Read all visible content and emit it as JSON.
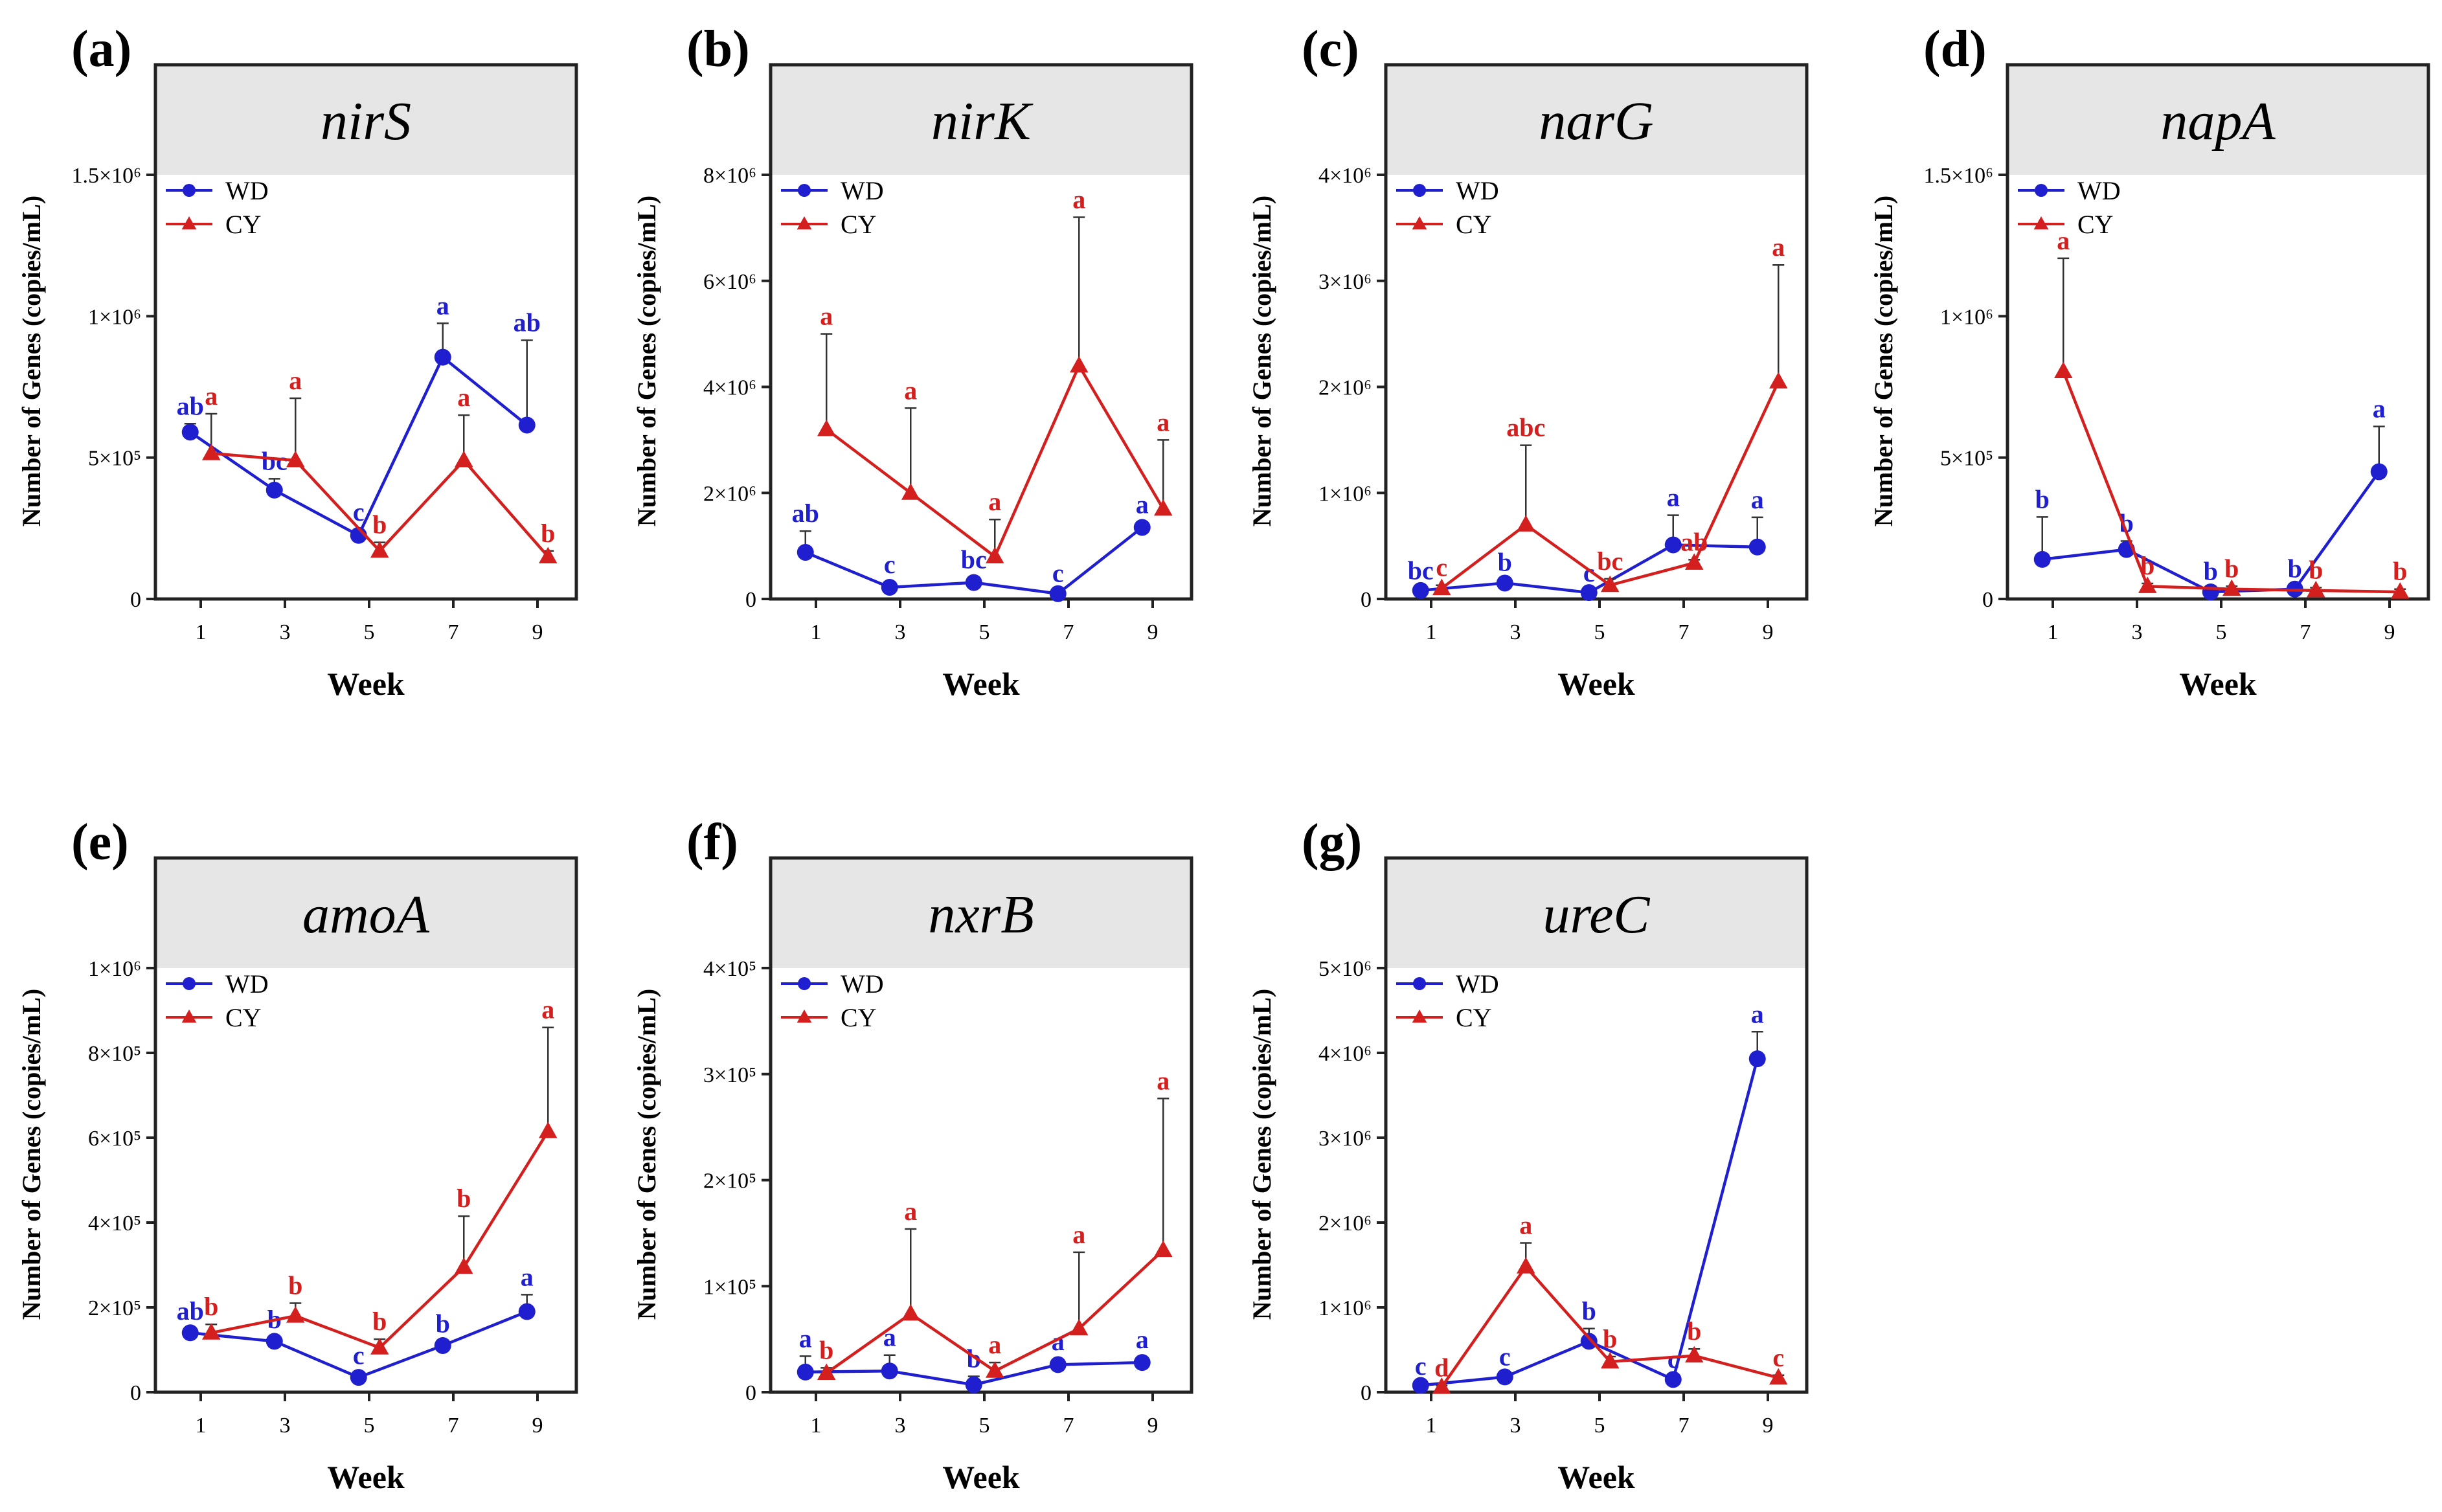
{
  "figure": {
    "type": "line-panel-grid",
    "x_label": "Week",
    "y_label": "Number of Genes (copies/mL)"
  },
  "series_legend": [
    {
      "name": "WD",
      "color": "#1f1fd0",
      "marker": "circle"
    },
    {
      "name": "CY",
      "color": "#d41f1f",
      "marker": "triangle"
    }
  ],
  "chart_data": [
    {
      "type": "line",
      "panel": "(a)",
      "title": "nirS",
      "x": [
        1,
        3,
        5,
        7,
        9
      ],
      "xlabel": "Week",
      "ylabel": "Number of Genes (copies/mL)",
      "ylim": [
        0,
        1500000
      ],
      "yticks": [
        0,
        500000,
        1000000,
        1500000
      ],
      "ytick_labels": [
        "0",
        "5×10⁵",
        "1×10⁶",
        "1.5×10⁶"
      ],
      "series": [
        {
          "name": "WD",
          "values": [
            590000,
            385000,
            225000,
            855000,
            615000
          ],
          "errors": [
            30000,
            40000,
            20000,
            120000,
            300000
          ],
          "letters": [
            "ab",
            "bc",
            "c",
            "a",
            "ab"
          ]
        },
        {
          "name": "CY",
          "values": [
            515000,
            490000,
            170000,
            490000,
            150000
          ],
          "errors": [
            140000,
            220000,
            30000,
            160000,
            20000
          ],
          "letters": [
            "a",
            "a",
            "b",
            "a",
            "b"
          ]
        }
      ]
    },
    {
      "type": "line",
      "panel": "(b)",
      "title": "nirK",
      "x": [
        1,
        3,
        5,
        7,
        9
      ],
      "xlabel": "Week",
      "ylabel": "Number of Genes (copies/mL)",
      "ylim": [
        0,
        8000000
      ],
      "yticks": [
        0,
        2000000,
        4000000,
        6000000,
        8000000
      ],
      "ytick_labels": [
        "0",
        "2×10⁶",
        "4×10⁶",
        "6×10⁶",
        "8×10⁶"
      ],
      "series": [
        {
          "name": "WD",
          "values": [
            880000,
            220000,
            310000,
            100000,
            1350000
          ],
          "errors": [
            400000,
            100000,
            100000,
            50000,
            100000
          ],
          "letters": [
            "ab",
            "c",
            "bc",
            "c",
            "a"
          ]
        },
        {
          "name": "CY",
          "values": [
            3200000,
            2000000,
            800000,
            4400000,
            1700000
          ],
          "errors": [
            1800000,
            1600000,
            700000,
            2800000,
            1300000
          ],
          "letters": [
            "a",
            "a",
            "a",
            "a",
            "a"
          ]
        }
      ]
    },
    {
      "type": "line",
      "panel": "(c)",
      "title": "narG",
      "x": [
        1,
        3,
        5,
        7,
        9
      ],
      "xlabel": "Week",
      "ylabel": "Number of Genes (copies/mL)",
      "ylim": [
        0,
        4000000
      ],
      "yticks": [
        0,
        1000000,
        2000000,
        3000000,
        4000000
      ],
      "ytick_labels": [
        "0",
        "1×10⁶",
        "2×10⁶",
        "3×10⁶",
        "4×10⁶"
      ],
      "series": [
        {
          "name": "WD",
          "values": [
            80000,
            150000,
            60000,
            510000,
            490000
          ],
          "errors": [
            20000,
            30000,
            20000,
            280000,
            280000
          ],
          "letters": [
            "bc",
            "b",
            "c",
            "a",
            "a"
          ]
        },
        {
          "name": "CY",
          "values": [
            100000,
            700000,
            130000,
            340000,
            2050000
          ],
          "errors": [
            30000,
            750000,
            60000,
            30000,
            1100000
          ],
          "letters": [
            "c",
            "abc",
            "bc",
            "ab",
            "a"
          ]
        }
      ]
    },
    {
      "type": "line",
      "panel": "(d)",
      "title": "napA",
      "x": [
        1,
        3,
        5,
        7,
        9
      ],
      "xlabel": "Week",
      "ylabel": "Number of Genes (copies/mL)",
      "ylim": [
        0,
        1500000
      ],
      "yticks": [
        0,
        500000,
        1000000,
        1500000
      ],
      "ytick_labels": [
        "0",
        "5×10⁵",
        "1×10⁶",
        "1.5×10⁶"
      ],
      "series": [
        {
          "name": "WD",
          "values": [
            140000,
            175000,
            25000,
            35000,
            450000
          ],
          "errors": [
            150000,
            30000,
            10000,
            10000,
            160000
          ],
          "letters": [
            "b",
            "b",
            "b",
            "b",
            "a"
          ]
        },
        {
          "name": "CY",
          "values": [
            805000,
            45000,
            35000,
            30000,
            25000
          ],
          "errors": [
            400000,
            10000,
            10000,
            10000,
            10000
          ],
          "letters": [
            "a",
            "b",
            "b",
            "b",
            "b"
          ]
        }
      ]
    },
    {
      "type": "line",
      "panel": "(e)",
      "title": "amoA",
      "x": [
        1,
        3,
        5,
        7,
        9
      ],
      "xlabel": "Week",
      "ylabel": "Number of Genes (copies/mL)",
      "ylim": [
        0,
        1000000
      ],
      "yticks": [
        0,
        200000,
        400000,
        600000,
        800000,
        1000000
      ],
      "ytick_labels": [
        "0",
        "2×10⁵",
        "4×10⁵",
        "6×10⁵",
        "8×10⁵",
        "1×10⁶"
      ],
      "series": [
        {
          "name": "WD",
          "values": [
            140000,
            120000,
            35000,
            110000,
            190000
          ],
          "errors": [
            10000,
            10000,
            10000,
            10000,
            40000
          ],
          "letters": [
            "ab",
            "b",
            "c",
            "b",
            "a"
          ]
        },
        {
          "name": "CY",
          "values": [
            140000,
            180000,
            105000,
            295000,
            615000
          ],
          "errors": [
            20000,
            30000,
            20000,
            120000,
            245000
          ],
          "letters": [
            "b",
            "b",
            "b",
            "b",
            "a"
          ]
        }
      ]
    },
    {
      "type": "line",
      "panel": "(f)",
      "title": "nxrB",
      "x": [
        1,
        3,
        5,
        7,
        9
      ],
      "xlabel": "Week",
      "ylabel": "Number of Genes (copies/mL)",
      "ylim": [
        0,
        400000
      ],
      "yticks": [
        0,
        100000,
        200000,
        300000,
        400000
      ],
      "ytick_labels": [
        "0",
        "1×10⁵",
        "2×10⁵",
        "3×10⁵",
        "4×10⁵"
      ],
      "series": [
        {
          "name": "WD",
          "values": [
            19000,
            20000,
            7000,
            26000,
            28000
          ],
          "errors": [
            15000,
            15000,
            8000,
            5000,
            5000
          ],
          "letters": [
            "a",
            "a",
            "b",
            "a",
            "a"
          ]
        },
        {
          "name": "CY",
          "values": [
            18000,
            74000,
            20000,
            60000,
            134000
          ],
          "errors": [
            5000,
            80000,
            8000,
            72000,
            143000
          ],
          "letters": [
            "b",
            "a",
            "a",
            "a",
            "a"
          ]
        }
      ]
    },
    {
      "type": "line",
      "panel": "(g)",
      "title": "ureC",
      "x": [
        1,
        3,
        5,
        7,
        9
      ],
      "xlabel": "Week",
      "ylabel": "Number of Genes (copies/mL)",
      "ylim": [
        0,
        5000000
      ],
      "yticks": [
        0,
        1000000,
        2000000,
        3000000,
        4000000,
        5000000
      ],
      "ytick_labels": [
        "0",
        "1×10⁶",
        "2×10⁶",
        "3×10⁶",
        "4×10⁶",
        "5×10⁶"
      ],
      "series": [
        {
          "name": "WD",
          "values": [
            80000,
            180000,
            600000,
            150000,
            3930000
          ],
          "errors": [
            20000,
            30000,
            150000,
            30000,
            320000
          ],
          "letters": [
            "c",
            "c",
            "b",
            "c",
            "a"
          ]
        },
        {
          "name": "CY",
          "values": [
            60000,
            1480000,
            360000,
            430000,
            170000
          ],
          "errors": [
            20000,
            280000,
            60000,
            80000,
            30000
          ],
          "letters": [
            "d",
            "a",
            "b",
            "b",
            "c"
          ]
        }
      ]
    }
  ]
}
